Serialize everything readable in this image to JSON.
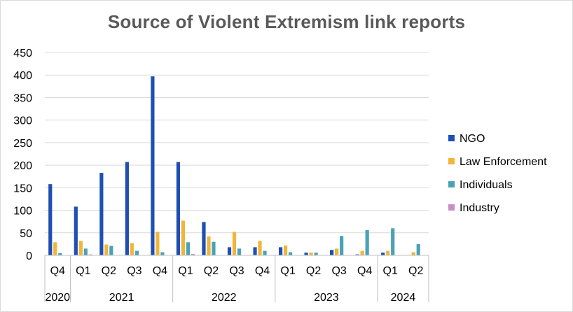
{
  "chart_data": {
    "type": "bar",
    "title": "Source of Violent Extremism link reports",
    "xlabel": "",
    "ylabel": "",
    "ylim": [
      0,
      450
    ],
    "yticks": [
      "0",
      "50",
      "100",
      "150",
      "200",
      "250",
      "300",
      "350",
      "400",
      "450"
    ],
    "grid": true,
    "legend_position": "right",
    "categories": [
      "Q4",
      "Q1",
      "Q2",
      "Q3",
      "Q4",
      "Q1",
      "Q2",
      "Q3",
      "Q4",
      "Q1",
      "Q2",
      "Q3",
      "Q4",
      "Q1",
      "Q2"
    ],
    "year_groups": [
      {
        "label": "2020",
        "count": 1
      },
      {
        "label": "2021",
        "count": 4
      },
      {
        "label": "2022",
        "count": 4
      },
      {
        "label": "2023",
        "count": 4
      },
      {
        "label": "2024",
        "count": 2
      }
    ],
    "series": [
      {
        "name": "NGO",
        "color": "#1f4fb4",
        "values": [
          158,
          108,
          183,
          207,
          397,
          207,
          74,
          18,
          18,
          18,
          6,
          12,
          2,
          6,
          0
        ]
      },
      {
        "name": "Law Enforcement",
        "color": "#f0b63a",
        "values": [
          29,
          32,
          24,
          27,
          52,
          77,
          42,
          52,
          32,
          22,
          6,
          15,
          10,
          10,
          7
        ]
      },
      {
        "name": "Individuals",
        "color": "#4aa2b8",
        "values": [
          5,
          15,
          21,
          10,
          7,
          29,
          30,
          15,
          10,
          7,
          6,
          43,
          56,
          60,
          25
        ]
      },
      {
        "name": "Industry",
        "color": "#c98ec8",
        "values": [
          0,
          2,
          0,
          0,
          0,
          3,
          0,
          0,
          0,
          0,
          0,
          0,
          0,
          0,
          0
        ]
      }
    ]
  }
}
